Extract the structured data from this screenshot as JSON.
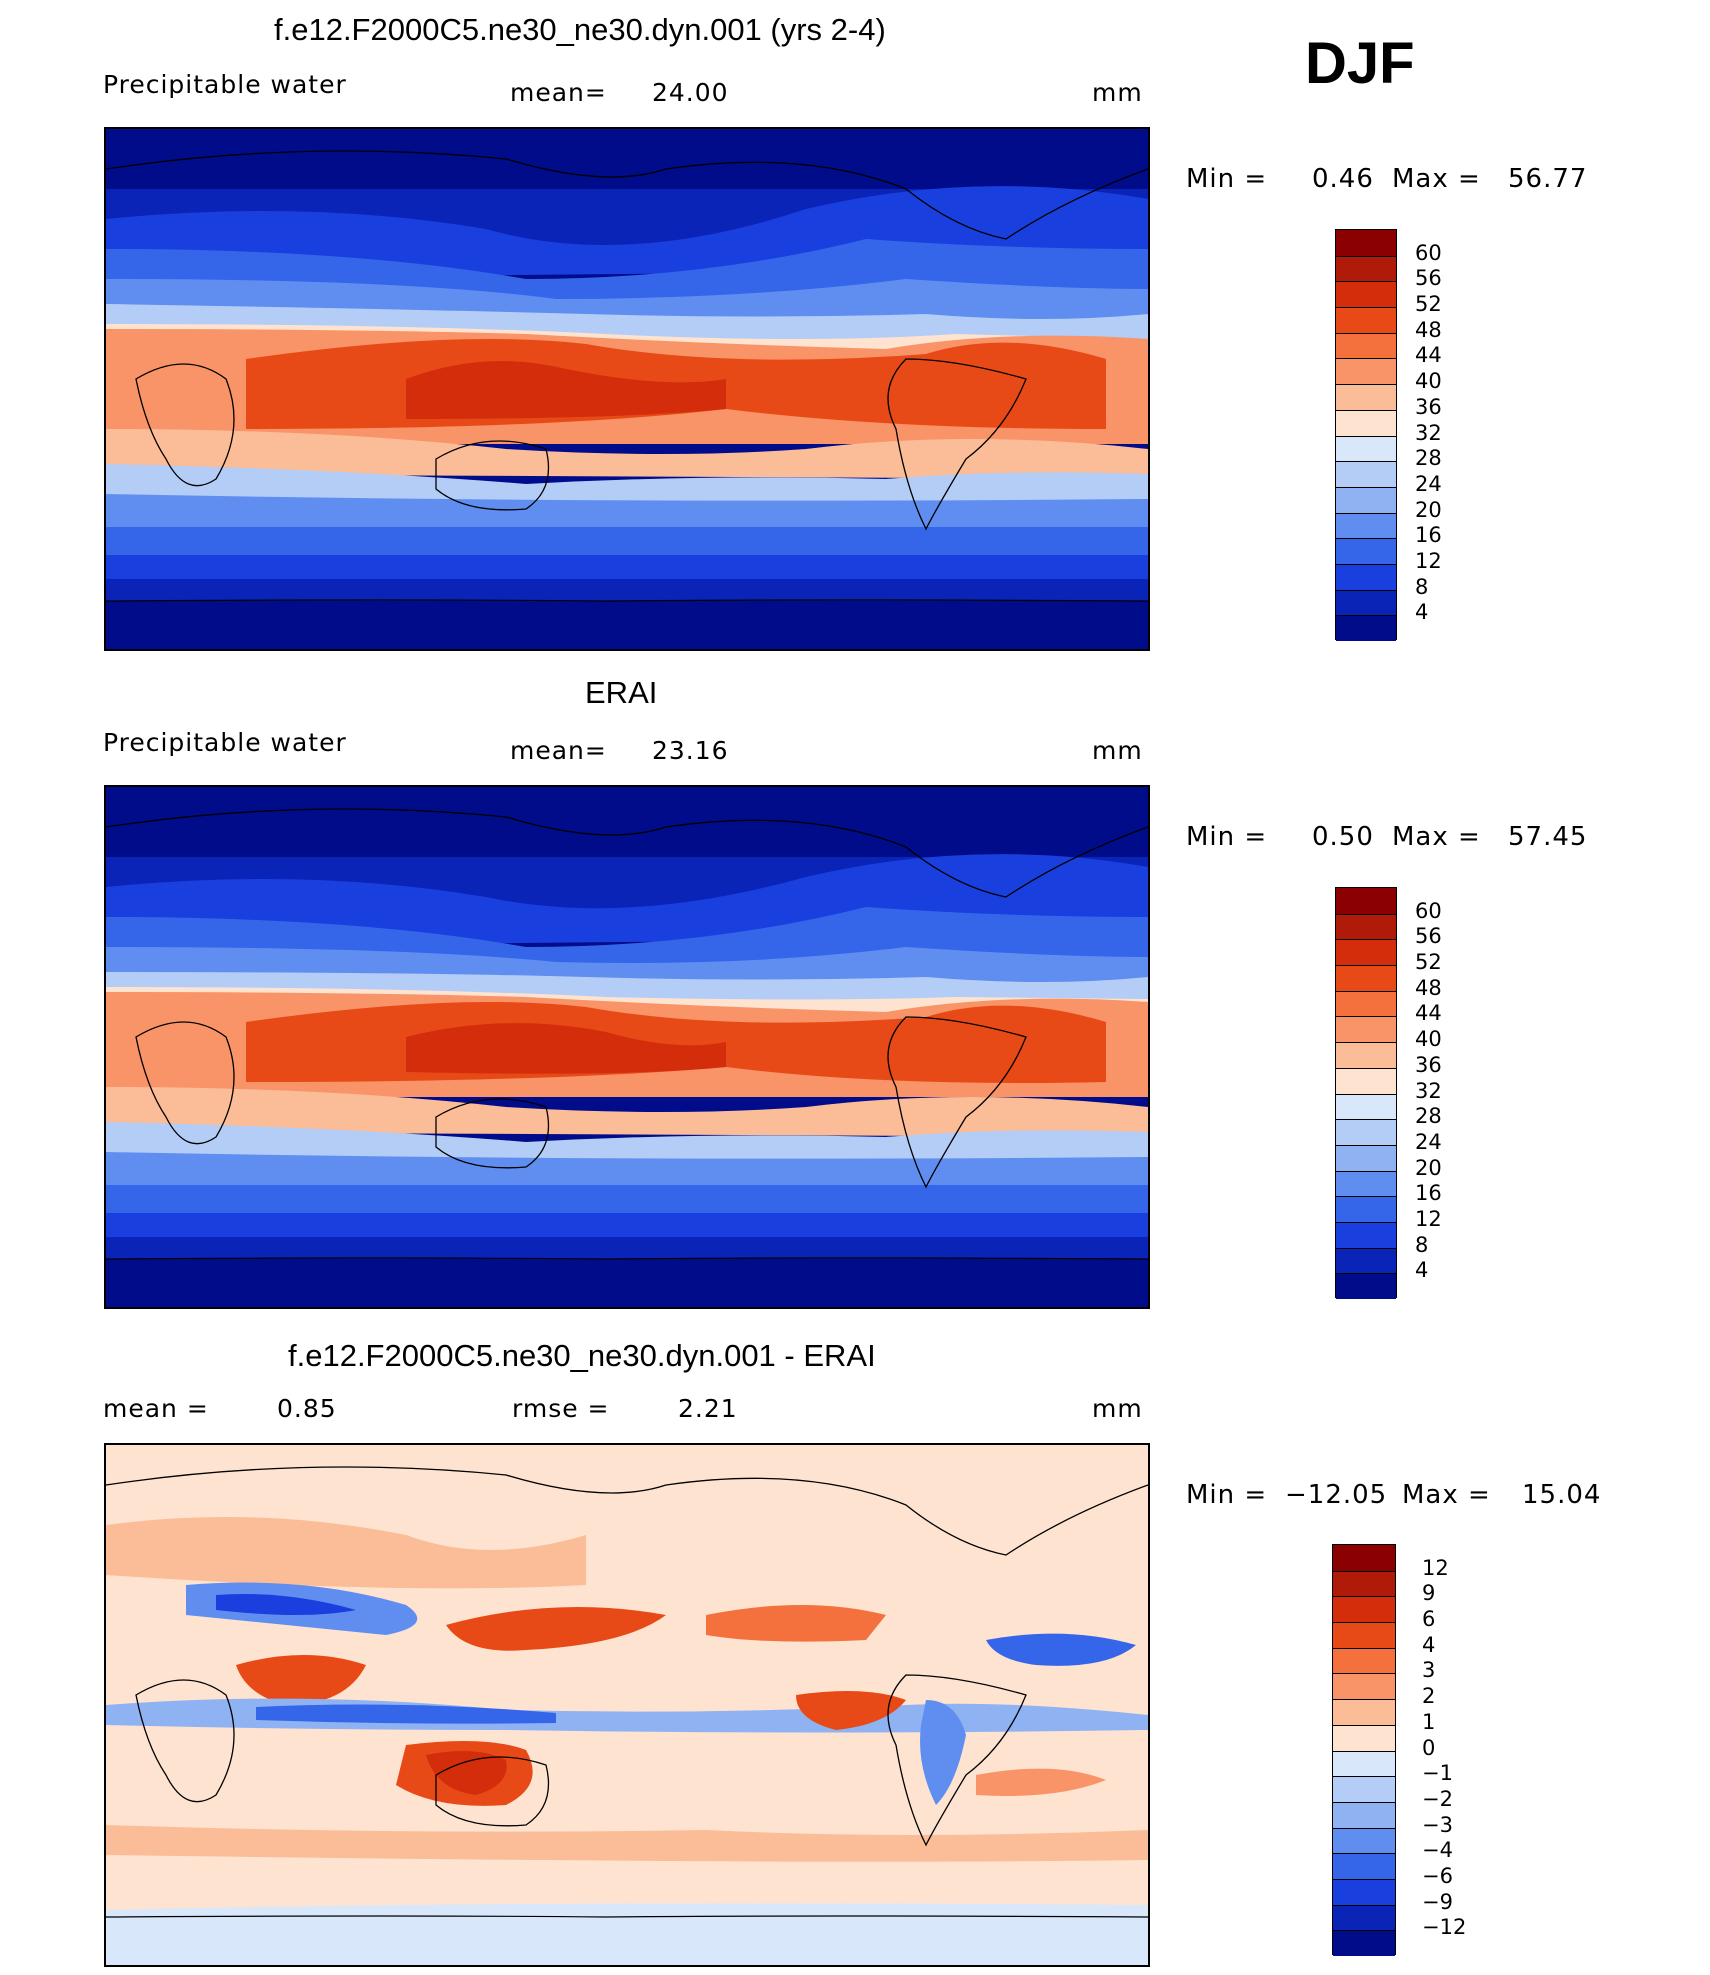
{
  "season": "DJF",
  "chart_data": [
    {
      "type": "heatmap",
      "title": "f.e12.F2000C5.ne30_ne30.dyn.001 (yrs 2-4)",
      "variable": "Precipitable water",
      "mean_label": "mean=",
      "mean_value": "24.00",
      "units": "mm",
      "min_label": "Min =",
      "min_value": "0.46",
      "max_label": "Max =",
      "max_value": "56.77",
      "levels": [
        "60",
        "56",
        "52",
        "48",
        "44",
        "40",
        "36",
        "32",
        "28",
        "24",
        "20",
        "16",
        "12",
        "8",
        "4"
      ],
      "colors": [
        "#8b0000",
        "#b01a08",
        "#d42d0b",
        "#e84a17",
        "#f4703d",
        "#f89468",
        "#fbbc98",
        "#fde3d0",
        "#d9e7fb",
        "#b3cdf7",
        "#8fb2f3",
        "#5f8ef0",
        "#3566ea",
        "#1a3fdf",
        "#0a24b8",
        "#000c8a"
      ]
    },
    {
      "type": "heatmap",
      "title": "ERAI",
      "variable": "Precipitable water",
      "mean_label": "mean=",
      "mean_value": "23.16",
      "units": "mm",
      "min_label": "Min =",
      "min_value": "0.50",
      "max_label": "Max =",
      "max_value": "57.45",
      "levels": [
        "60",
        "56",
        "52",
        "48",
        "44",
        "40",
        "36",
        "32",
        "28",
        "24",
        "20",
        "16",
        "12",
        "8",
        "4"
      ],
      "colors": [
        "#8b0000",
        "#b01a08",
        "#d42d0b",
        "#e84a17",
        "#f4703d",
        "#f89468",
        "#fbbc98",
        "#fde3d0",
        "#d9e7fb",
        "#b3cdf7",
        "#8fb2f3",
        "#5f8ef0",
        "#3566ea",
        "#1a3fdf",
        "#0a24b8",
        "#000c8a"
      ]
    },
    {
      "type": "heatmap",
      "title": "f.e12.F2000C5.ne30_ne30.dyn.001 - ERAI",
      "mean_label": "mean =",
      "mean_value": "0.85",
      "rmse_label": "rmse =",
      "rmse_value": "2.21",
      "units": "mm",
      "min_label": "Min =",
      "min_value": "−12.05",
      "max_label": "Max =",
      "max_value": "15.04",
      "levels": [
        "12",
        "9",
        "6",
        "4",
        "3",
        "2",
        "1",
        "0",
        "−1",
        "−2",
        "−3",
        "−4",
        "−6",
        "−9",
        "−12"
      ],
      "colors": [
        "#8b0000",
        "#b01a08",
        "#d42d0b",
        "#e84a17",
        "#f4703d",
        "#f89468",
        "#fbbc98",
        "#fde3d0",
        "#d9e7fb",
        "#b3cdf7",
        "#8fb2f3",
        "#5f8ef0",
        "#3566ea",
        "#1a3fdf",
        "#0a24b8",
        "#000c8a"
      ]
    }
  ]
}
